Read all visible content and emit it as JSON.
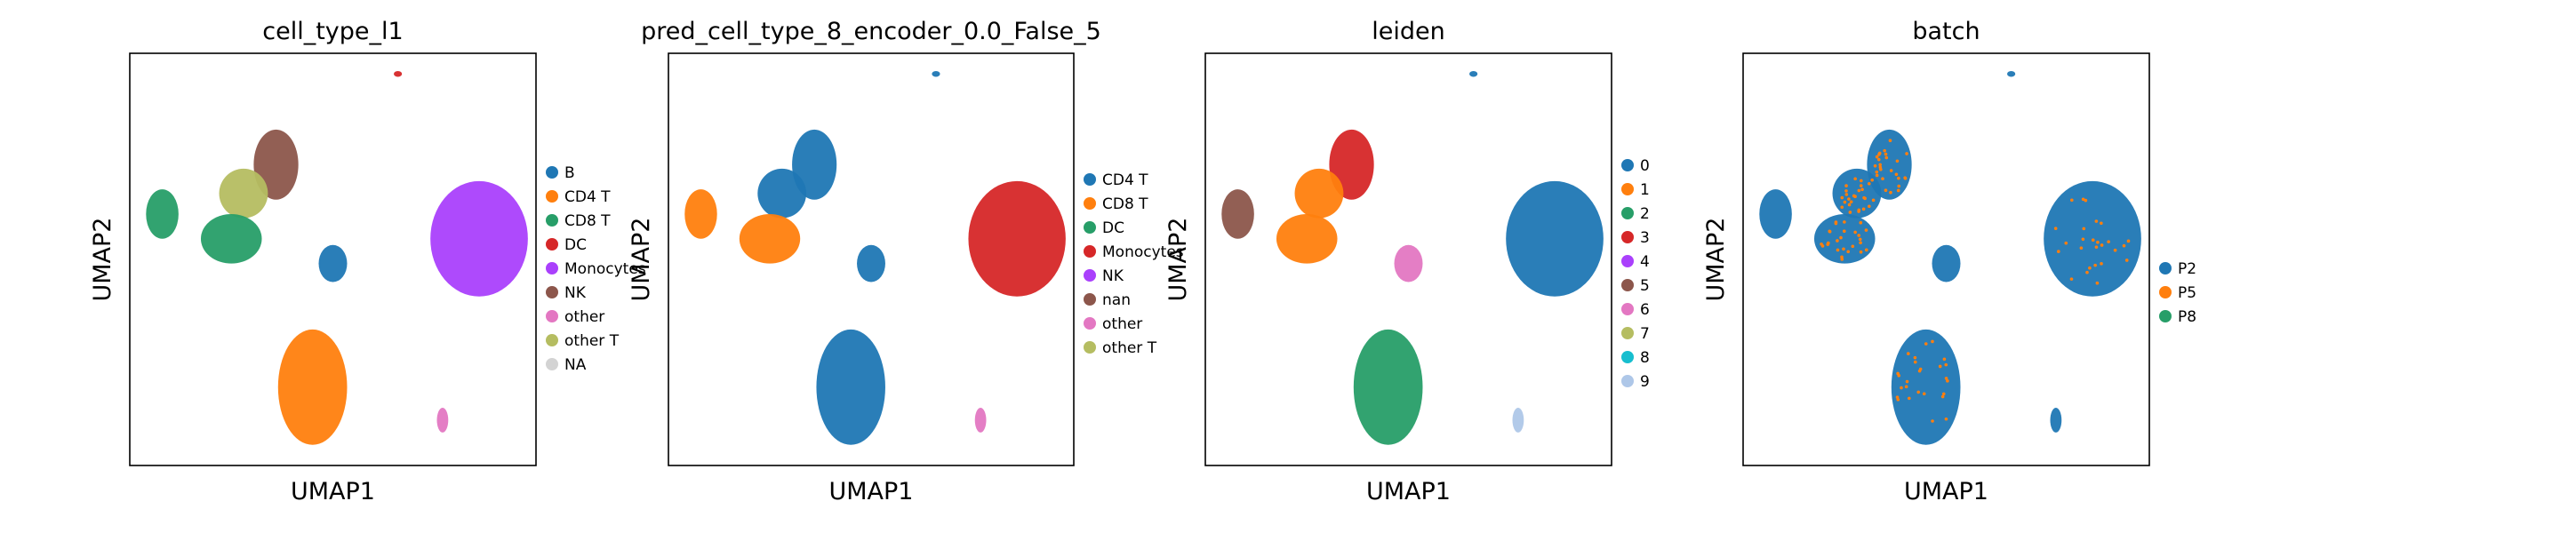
{
  "chart_data": [
    {
      "type": "scatter",
      "title": "cell_type_l1",
      "xlabel": "UMAP1",
      "ylabel": "UMAP2",
      "grid": false,
      "legend_position": "right",
      "legend": [
        {
          "label": "B",
          "color": "#1f77b4"
        },
        {
          "label": "CD4 T",
          "color": "#ff7f0e"
        },
        {
          "label": "CD8 T",
          "color": "#279e68"
        },
        {
          "label": "DC",
          "color": "#d62728"
        },
        {
          "label": "Monocytes",
          "color": "#aa40fc"
        },
        {
          "label": "NK",
          "color": "#8c564b"
        },
        {
          "label": "other",
          "color": "#e377c2"
        },
        {
          "label": "other T",
          "color": "#b5bd61"
        },
        {
          "label": "NA",
          "color": "#d3d3d3"
        }
      ],
      "clusters": [
        "#8c564b",
        "#b5bd61",
        "#279e68",
        "#279e68",
        "#1f77b4",
        "#aa40fc",
        "#ff7f0e",
        "#e377c2",
        "#d62728"
      ]
    },
    {
      "type": "scatter",
      "title": "pred_cell_type_8_encoder_0.0_False_5",
      "xlabel": "UMAP1",
      "ylabel": "UMAP2",
      "grid": false,
      "legend_position": "right",
      "legend": [
        {
          "label": "CD4 T",
          "color": "#1f77b4"
        },
        {
          "label": "CD8 T",
          "color": "#ff7f0e"
        },
        {
          "label": "DC",
          "color": "#279e68"
        },
        {
          "label": "Monocytes",
          "color": "#d62728"
        },
        {
          "label": "NK",
          "color": "#aa40fc"
        },
        {
          "label": "nan",
          "color": "#8c564b"
        },
        {
          "label": "other",
          "color": "#e377c2"
        },
        {
          "label": "other T",
          "color": "#b5bd61"
        }
      ],
      "clusters": [
        "#1f77b4",
        "#1f77b4",
        "#ff7f0e",
        "#ff7f0e",
        "#1f77b4",
        "#d62728",
        "#1f77b4",
        "#e377c2",
        "#1f77b4"
      ]
    },
    {
      "type": "scatter",
      "title": "leiden",
      "xlabel": "UMAP1",
      "ylabel": "UMAP2",
      "grid": false,
      "legend_position": "right",
      "legend": [
        {
          "label": "0",
          "color": "#1f77b4"
        },
        {
          "label": "1",
          "color": "#ff7f0e"
        },
        {
          "label": "2",
          "color": "#279e68"
        },
        {
          "label": "3",
          "color": "#d62728"
        },
        {
          "label": "4",
          "color": "#aa40fc"
        },
        {
          "label": "5",
          "color": "#8c564b"
        },
        {
          "label": "6",
          "color": "#e377c2"
        },
        {
          "label": "7",
          "color": "#b5bd61"
        },
        {
          "label": "8",
          "color": "#17becf"
        },
        {
          "label": "9",
          "color": "#aec7e8"
        }
      ],
      "clusters": [
        "#d62728",
        "#ff7f0e",
        "#8c564b",
        "#ff7f0e",
        "#e377c2",
        "#1f77b4",
        "#279e68",
        "#aec7e8",
        "#1f77b4"
      ]
    },
    {
      "type": "scatter",
      "title": "batch",
      "xlabel": "UMAP1",
      "ylabel": "UMAP2",
      "grid": false,
      "legend_position": "right",
      "legend": [
        {
          "label": "P2",
          "color": "#1f77b4"
        },
        {
          "label": "P5",
          "color": "#ff7f0e"
        },
        {
          "label": "P8",
          "color": "#279e68"
        }
      ],
      "clusters": [
        "#1f77b4",
        "#1f77b4",
        "#1f77b4",
        "#1f77b4",
        "#1f77b4",
        "#1f77b4",
        "#1f77b4",
        "#1f77b4",
        "#1f77b4"
      ]
    }
  ]
}
